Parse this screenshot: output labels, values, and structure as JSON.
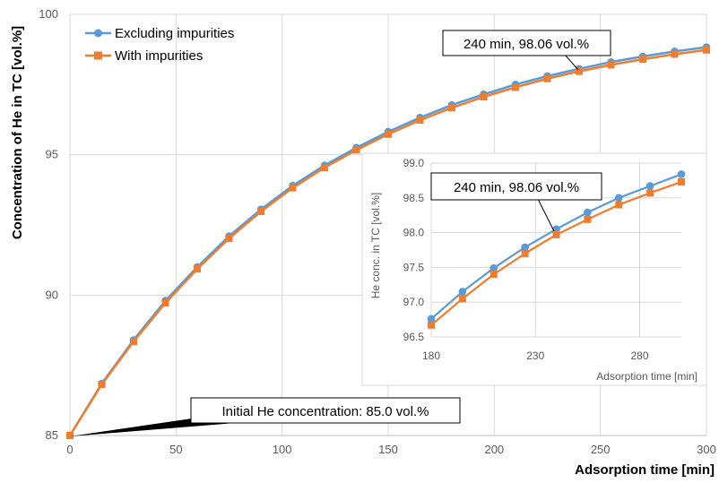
{
  "chart_data": [
    {
      "type": "line",
      "xlabel": "Adsorption time [min]",
      "ylabel": "Concentration of He in TC [vol.%]",
      "xlim": [
        0,
        300
      ],
      "ylim": [
        85,
        100
      ],
      "xticks": [
        0,
        50,
        100,
        150,
        200,
        250,
        300
      ],
      "yticks": [
        85,
        90,
        95,
        100
      ],
      "grid": true,
      "legend": "top-left",
      "x": [
        0,
        15,
        30,
        45,
        60,
        75,
        90,
        105,
        120,
        135,
        150,
        165,
        180,
        195,
        210,
        225,
        240,
        255,
        270,
        285,
        300
      ],
      "series": [
        {
          "name": "Excluding impurities",
          "color": "#5b9bd5",
          "marker": "circle",
          "values": [
            85.0,
            86.85,
            88.4,
            89.8,
            91.0,
            92.1,
            93.05,
            93.9,
            94.62,
            95.25,
            95.82,
            96.32,
            96.77,
            97.15,
            97.5,
            97.8,
            98.06,
            98.3,
            98.5,
            98.68,
            98.83
          ]
        },
        {
          "name": "With impurities",
          "color": "#ed7d31",
          "marker": "square",
          "values": [
            85.0,
            86.82,
            88.35,
            89.72,
            90.93,
            92.02,
            92.98,
            93.82,
            94.54,
            95.17,
            95.73,
            96.23,
            96.67,
            97.06,
            97.4,
            97.71,
            97.97,
            98.2,
            98.4,
            98.58,
            98.73
          ]
        }
      ],
      "annotations": [
        {
          "text": "240 min, 98.06 vol.%",
          "x": 240,
          "y": 98.06
        },
        {
          "text": "Initial He concentration: 85.0 vol.%",
          "x": 0,
          "y": 85.0
        }
      ]
    },
    {
      "type": "line",
      "xlabel": "Adsorption time [min]",
      "ylabel": "He conc. in TC [vol.%]",
      "xlim": [
        180,
        300
      ],
      "ylim": [
        96.5,
        99.0
      ],
      "xticks": [
        180,
        230,
        280
      ],
      "xtick_labels": [
        "180",
        "230",
        "280"
      ],
      "yticks": [
        96.5,
        97.0,
        97.5,
        98.0,
        98.5,
        99.0
      ],
      "ytick_labels": [
        "96.5",
        "97.0",
        "97.5",
        "98.0",
        "98.5",
        "99.0"
      ],
      "grid": true,
      "x": [
        180,
        195,
        210,
        225,
        240,
        255,
        270,
        285,
        300
      ],
      "series": [
        {
          "name": "Excluding impurities",
          "color": "#5b9bd5",
          "marker": "circle",
          "values": [
            96.76,
            97.15,
            97.49,
            97.79,
            98.05,
            98.29,
            98.5,
            98.67,
            98.84
          ]
        },
        {
          "name": "With impurities",
          "color": "#ed7d31",
          "marker": "square",
          "values": [
            96.67,
            97.05,
            97.4,
            97.7,
            97.97,
            98.19,
            98.4,
            98.57,
            98.73
          ]
        }
      ],
      "annotations": [
        {
          "text": "240 min, 98.06 vol.%",
          "x": 240,
          "y": 98.06
        }
      ]
    }
  ]
}
